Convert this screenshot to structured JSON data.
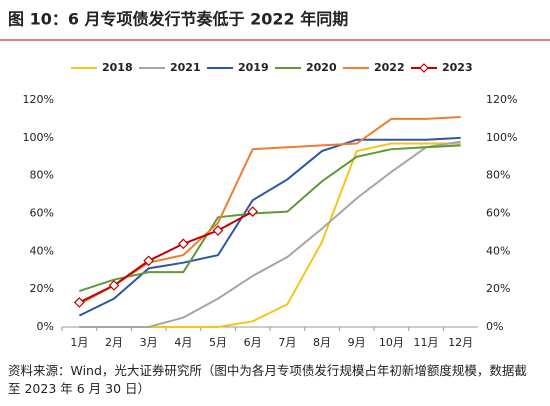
{
  "chart_data": {
    "type": "line",
    "title": "图 10：6 月专项债发行节奏低于 2022 年同期",
    "categories": [
      "1月",
      "2月",
      "3月",
      "4月",
      "5月",
      "6月",
      "7月",
      "8月",
      "9月",
      "10月",
      "11月",
      "12月"
    ],
    "series": [
      {
        "name": "2018",
        "color": "#f5c518",
        "values": [
          0,
          0,
          0,
          0,
          0,
          3,
          12,
          45,
          93,
          97,
          97,
          97
        ]
      },
      {
        "name": "2021",
        "color": "#a6a6a6",
        "values": [
          0,
          0,
          0,
          5,
          15,
          27,
          37,
          52,
          68,
          82,
          95,
          98
        ]
      },
      {
        "name": "2019",
        "color": "#2e56a6",
        "values": [
          6,
          15,
          31,
          34,
          38,
          67,
          78,
          93,
          99,
          99,
          99,
          100
        ]
      },
      {
        "name": "2020",
        "color": "#5e9a3a",
        "values": [
          19,
          25,
          29,
          29,
          58,
          60,
          61,
          77,
          90,
          94,
          95,
          96
        ]
      },
      {
        "name": "2022",
        "color": "#ed7d31",
        "values": [
          12,
          22,
          34,
          38,
          55,
          94,
          95,
          96,
          97,
          110,
          110,
          111
        ]
      },
      {
        "name": "2023",
        "color": "#c00000",
        "values": [
          13,
          22,
          35,
          44,
          51,
          61,
          null,
          null,
          null,
          null,
          null,
          null
        ],
        "marker": "diamond"
      }
    ],
    "ylim": [
      0,
      120
    ],
    "yticks": [
      {
        "value": 0,
        "label": "0%"
      },
      {
        "value": 20,
        "label": "20%"
      },
      {
        "value": 40,
        "label": "40%"
      },
      {
        "value": 60,
        "label": "60%"
      },
      {
        "value": 80,
        "label": "80%"
      },
      {
        "value": 100,
        "label": "100%"
      },
      {
        "value": 120,
        "label": "120%"
      }
    ],
    "y2lim": [
      0,
      120
    ],
    "y2ticks": [
      {
        "value": 0,
        "label": "0%"
      },
      {
        "value": 20,
        "label": "20%"
      },
      {
        "value": 40,
        "label": "40%"
      },
      {
        "value": 60,
        "label": "60%"
      },
      {
        "value": 80,
        "label": "80%"
      },
      {
        "value": 100,
        "label": "100%"
      },
      {
        "value": 120,
        "label": "120%"
      }
    ],
    "legend": "top",
    "note": "资料来源：Wind，光大证券研究所（图中为各月专项债发行规模占年初新增额度规模，数据截至 2023 年 6 月 30 日）"
  }
}
